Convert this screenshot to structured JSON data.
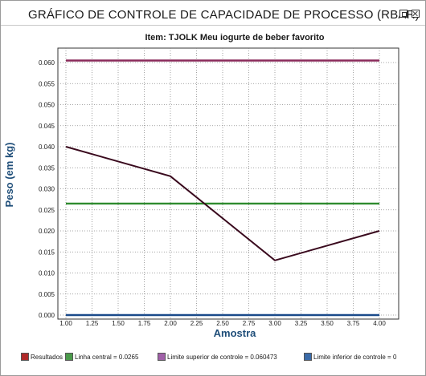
{
  "window": {
    "title": "GRÁFICO DE CONTROLE DE CAPACIDADE DE PROCESSO (RBAR)"
  },
  "chart_data": {
    "type": "line",
    "title": "Item: TJOLK Meu iogurte de beber favorito",
    "xlabel": "Amostra",
    "ylabel": "Peso (em kg)",
    "xlim": [
      1.0,
      4.0
    ],
    "ylim": [
      0.0,
      0.06
    ],
    "x_ticks": [
      "1.00",
      "1.25",
      "1.50",
      "1.75",
      "2.00",
      "2.25",
      "2.50",
      "2.75",
      "3.00",
      "3.25",
      "3.50",
      "3.75",
      "4.00"
    ],
    "y_ticks": [
      "0.000",
      "0.005",
      "0.010",
      "0.015",
      "0.020",
      "0.025",
      "0.030",
      "0.035",
      "0.040",
      "0.045",
      "0.050",
      "0.055",
      "0.060"
    ],
    "grid": true,
    "legend_position": "bottom",
    "series": [
      {
        "name": "Resultados",
        "color": "#3a0a1e",
        "legend_color": "#b02a2a",
        "x": [
          1.0,
          2.0,
          3.0,
          4.0
        ],
        "y": [
          0.04,
          0.033,
          0.013,
          0.02
        ]
      },
      {
        "name": "Linha central = 0.0265",
        "color": "#2e8b2e",
        "legend_color": "#4a9a4a",
        "x": [
          1.0,
          4.0
        ],
        "y": [
          0.0265,
          0.0265
        ]
      },
      {
        "name": "Limite superior de controle = 0.060473",
        "color": "#8a2a5a",
        "legend_color": "#a060a8",
        "x": [
          1.0,
          4.0
        ],
        "y": [
          0.060473,
          0.060473
        ]
      },
      {
        "name": "Limite inferior de controle = 0",
        "color": "#1a4a8a",
        "legend_color": "#3a6aa8",
        "x": [
          1.0,
          4.0
        ],
        "y": [
          0.0,
          0.0
        ]
      }
    ]
  }
}
